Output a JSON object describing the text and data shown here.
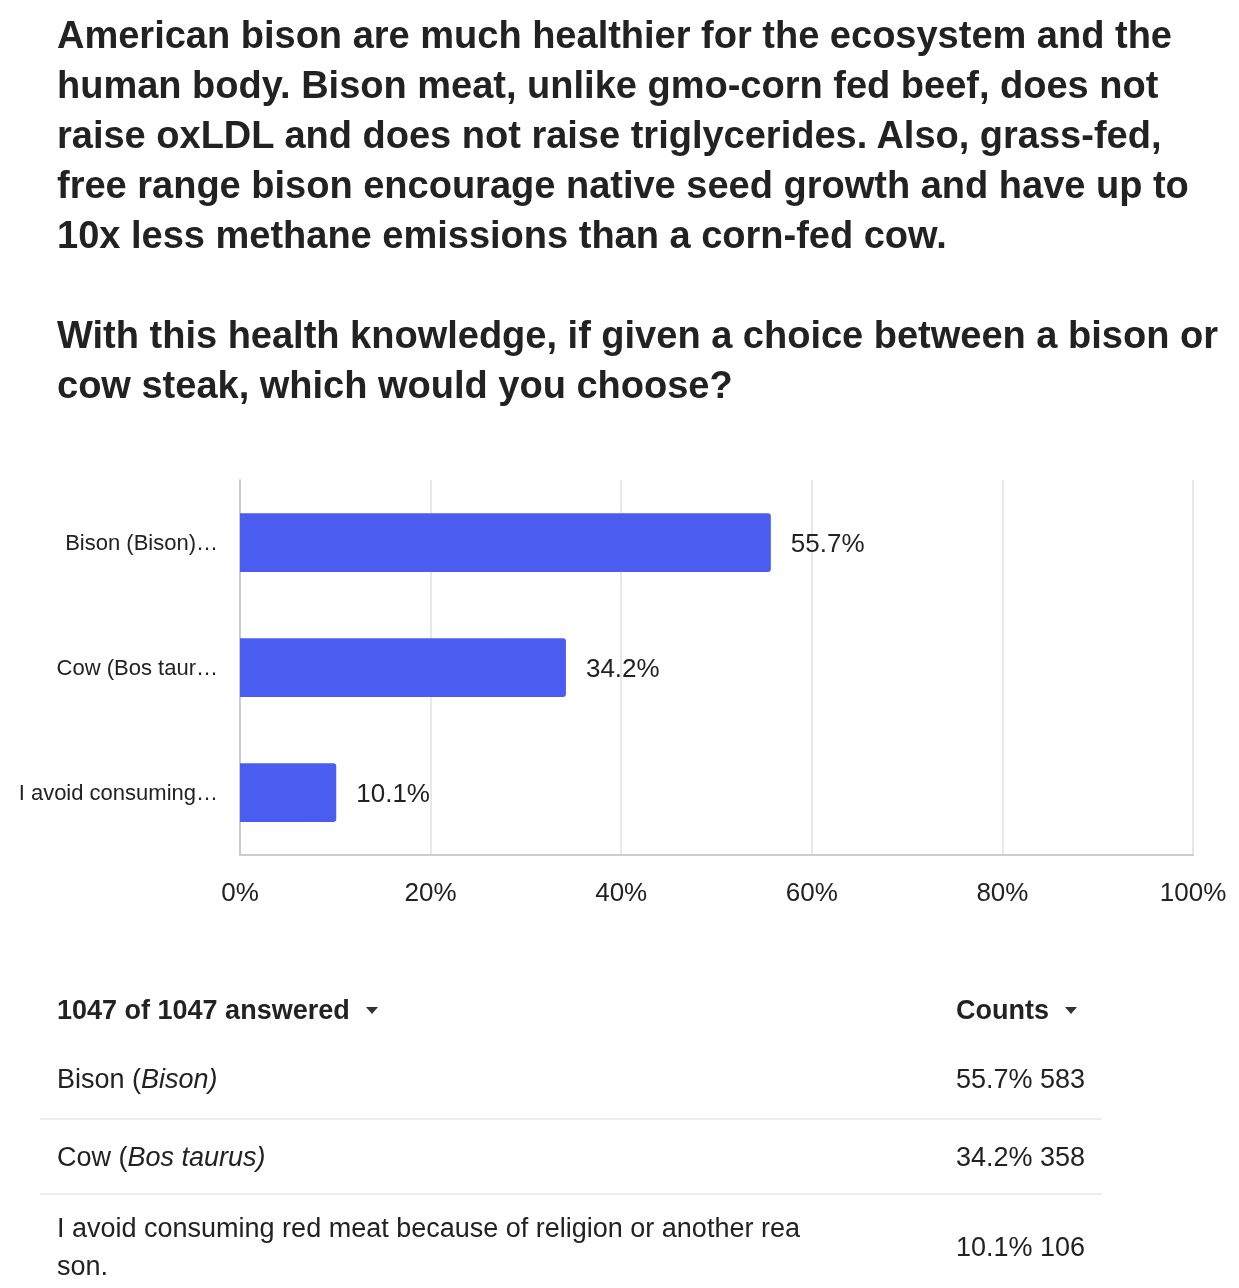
{
  "chart_data": [
    {
      "type": "bar",
      "title": "American bison are much healthier for the ecosystem and the human body. Bison meat, unlike gmo-corn fed beef, does not raise oxLDL and does not raise triglycerides. Also, grass-fed, free range bison encourage native seed growth and have up to 10x less methane emissions than a corn-fed cow.",
      "subtitle": "With this health knowledge, if given a choice between a bison or cow steak, which would you choose?",
      "orientation": "horizontal",
      "categories": [
        "Bison (Bison)…",
        "Cow (Bos taur…",
        "I avoid consuming…"
      ],
      "values": [
        55.7,
        34.2,
        10.1
      ],
      "color": "#4b5cf0",
      "value_labels": [
        "55.7%",
        "34.2%",
        "10.1%"
      ],
      "xlim": [
        0,
        100
      ],
      "xticks": [
        {
          "value": 0,
          "label": "0%"
        },
        {
          "value": 20,
          "label": "20%"
        },
        {
          "value": 40,
          "label": "40%"
        },
        {
          "value": 60,
          "label": "60%"
        },
        {
          "value": 80,
          "label": "80%"
        },
        {
          "value": 100,
          "label": "100%"
        }
      ],
      "grid": "x"
    },
    {
      "type": "other",
      "title": "1047 of 1047 answered",
      "ylabel": "Counts",
      "categories": [
        "Bison (Bison)",
        "Cow (Bos taurus)",
        "I avoid consuming red meat because of religion or another reason."
      ],
      "value_labels": [
        "55.7% 583",
        "34.2% 358",
        "10.1% 106"
      ]
    }
  ]
}
